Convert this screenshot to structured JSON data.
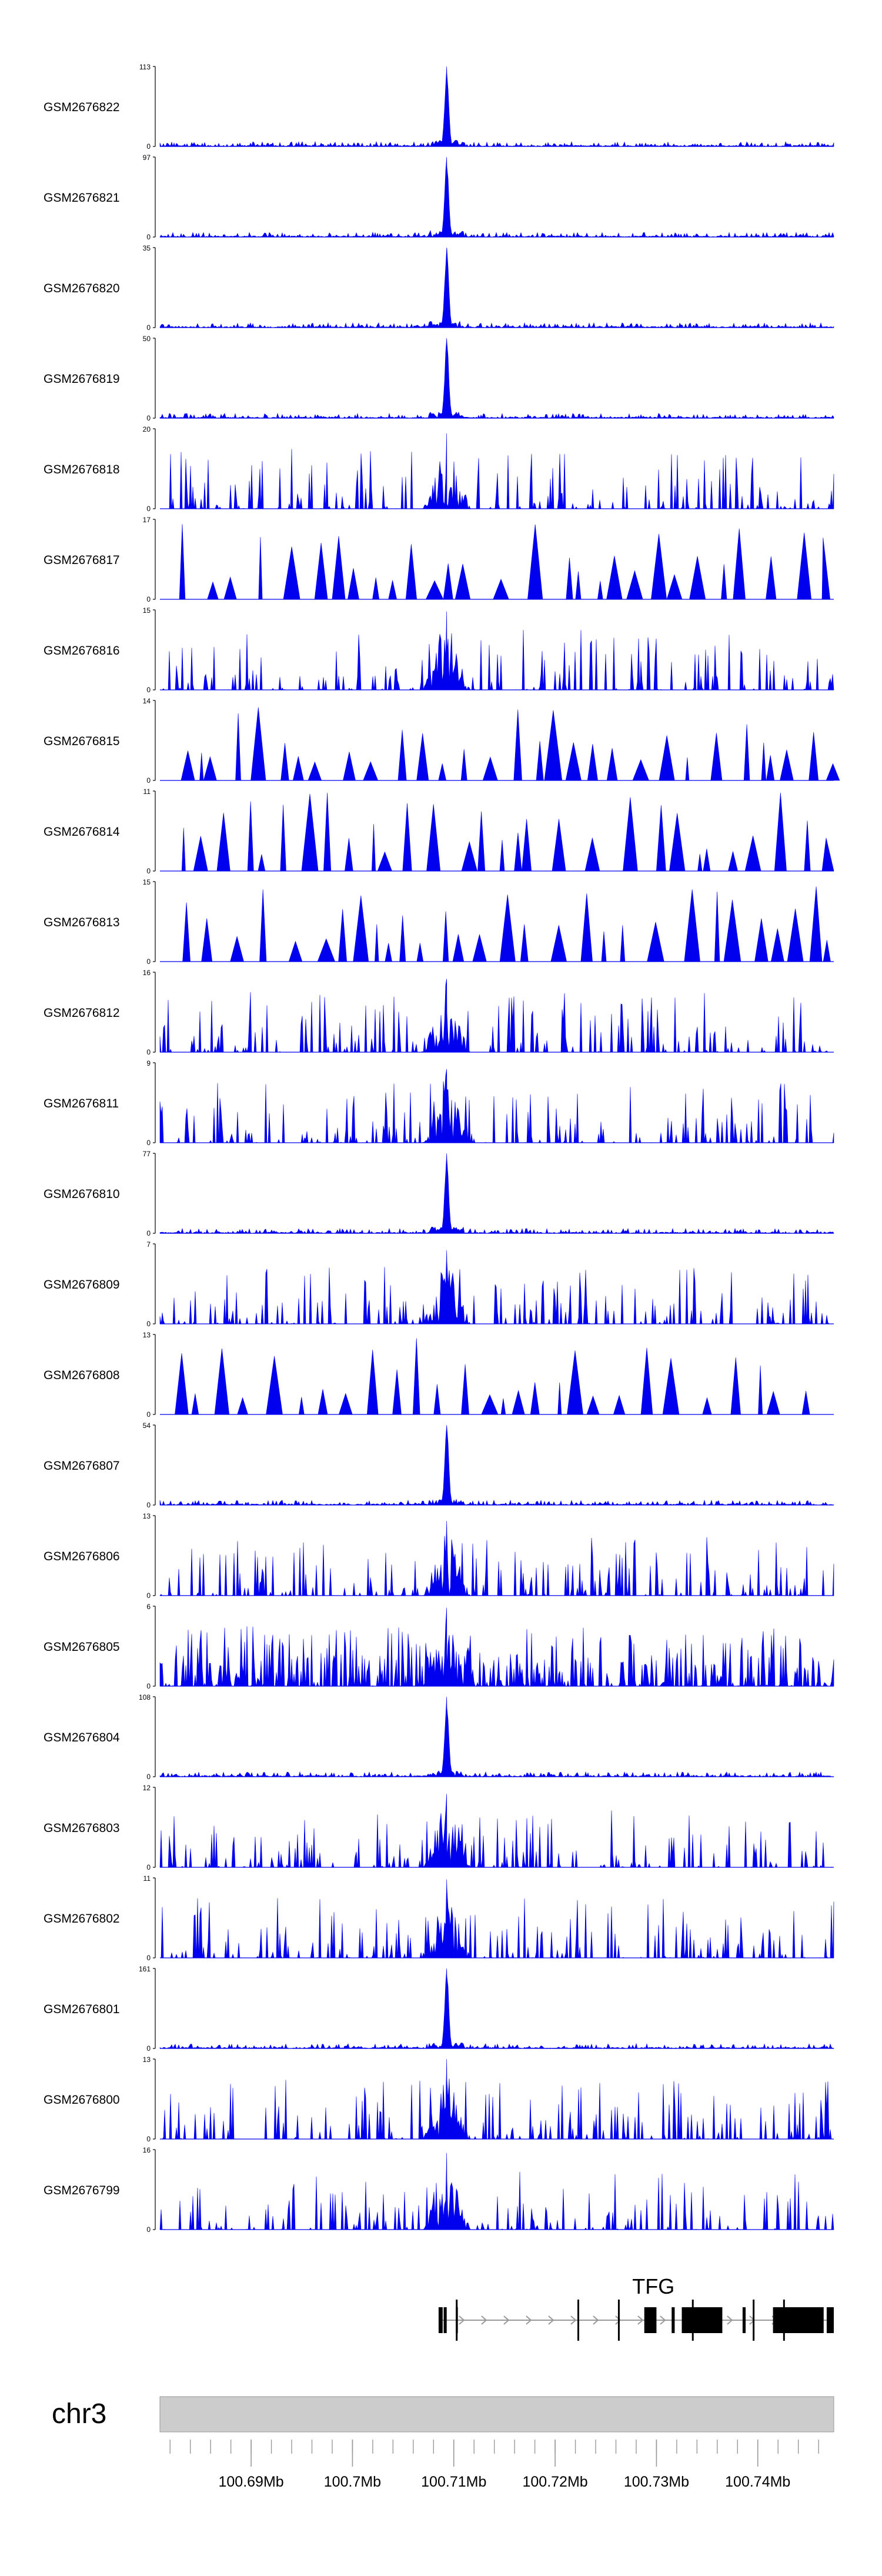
{
  "chart_data": {
    "type": "area",
    "title": "",
    "genome_axis": {
      "chromosome": "chr3",
      "range_mb": [
        100.681,
        100.7475
      ],
      "major_ticks_mb": [
        100.69,
        100.7,
        100.71,
        100.72,
        100.73,
        100.74
      ],
      "tick_labels": [
        "100.69Mb",
        "100.7Mb",
        "100.71Mb",
        "100.72Mb",
        "100.73Mb",
        "100.74Mb"
      ]
    },
    "peak_position_mb": 100.7093,
    "gene": {
      "name": "TFG",
      "start_mb": 100.7085,
      "end_mb": 100.7475,
      "exons_mb": [
        [
          100.7085,
          100.7089
        ],
        [
          100.709,
          100.7093
        ],
        [
          100.7102,
          100.7104
        ],
        [
          100.7288,
          100.73
        ],
        [
          100.7315,
          100.7318
        ],
        [
          100.7325,
          100.7365
        ],
        [
          100.7385,
          100.7388
        ],
        [
          100.7415,
          100.7465
        ],
        [
          100.7468,
          100.7475
        ]
      ]
    },
    "tracks": [
      {
        "name": "GSM2676822",
        "ymax": "113",
        "ymin": "0",
        "peak_value": 113,
        "profile": "peaked"
      },
      {
        "name": "GSM2676821",
        "ymax": "97",
        "ymin": "0",
        "peak_value": 97,
        "profile": "peaked"
      },
      {
        "name": "GSM2676820",
        "ymax": "35",
        "ymin": "0",
        "peak_value": 35,
        "profile": "peaked"
      },
      {
        "name": "GSM2676819",
        "ymax": "50",
        "ymin": "0",
        "peak_value": 50,
        "profile": "peaked"
      },
      {
        "name": "GSM2676818",
        "ymax": "20",
        "ymin": "0",
        "peak_value": 20,
        "profile": "noisy"
      },
      {
        "name": "GSM2676817",
        "ymax": "17",
        "ymin": "0",
        "peak_value": 17,
        "profile": "sparse"
      },
      {
        "name": "GSM2676816",
        "ymax": "15",
        "ymin": "0",
        "peak_value": 15,
        "profile": "noisy"
      },
      {
        "name": "GSM2676815",
        "ymax": "14",
        "ymin": "0",
        "peak_value": 14,
        "profile": "sparse"
      },
      {
        "name": "GSM2676814",
        "ymax": "11",
        "ymin": "0",
        "peak_value": 11,
        "profile": "sparse"
      },
      {
        "name": "GSM2676813",
        "ymax": "15",
        "ymin": "0",
        "peak_value": 15,
        "profile": "sparse"
      },
      {
        "name": "GSM2676812",
        "ymax": "16",
        "ymin": "0",
        "peak_value": 16,
        "profile": "noisy"
      },
      {
        "name": "GSM2676811",
        "ymax": "9",
        "ymin": "0",
        "peak_value": 9,
        "profile": "noisy"
      },
      {
        "name": "GSM2676810",
        "ymax": "77",
        "ymin": "0",
        "peak_value": 77,
        "profile": "peaked"
      },
      {
        "name": "GSM2676809",
        "ymax": "7",
        "ymin": "0",
        "peak_value": 7,
        "profile": "noisy"
      },
      {
        "name": "GSM2676808",
        "ymax": "13",
        "ymin": "0",
        "peak_value": 13,
        "profile": "sparse"
      },
      {
        "name": "GSM2676807",
        "ymax": "54",
        "ymin": "0",
        "peak_value": 54,
        "profile": "peaked"
      },
      {
        "name": "GSM2676806",
        "ymax": "13",
        "ymin": "0",
        "peak_value": 13,
        "profile": "noisy"
      },
      {
        "name": "GSM2676805",
        "ymax": "6",
        "ymin": "0",
        "peak_value": 6,
        "profile": "dense"
      },
      {
        "name": "GSM2676804",
        "ymax": "108",
        "ymin": "0",
        "peak_value": 108,
        "profile": "peaked"
      },
      {
        "name": "GSM2676803",
        "ymax": "12",
        "ymin": "0",
        "peak_value": 12,
        "profile": "noisy"
      },
      {
        "name": "GSM2676802",
        "ymax": "11",
        "ymin": "0",
        "peak_value": 11,
        "profile": "noisy"
      },
      {
        "name": "GSM2676801",
        "ymax": "161",
        "ymin": "0",
        "peak_value": 161,
        "profile": "peaked"
      },
      {
        "name": "GSM2676800",
        "ymax": "13",
        "ymin": "0",
        "peak_value": 13,
        "profile": "noisy"
      },
      {
        "name": "GSM2676799",
        "ymax": "16",
        "ymin": "0",
        "peak_value": 16,
        "profile": "noisy"
      }
    ]
  },
  "colors": {
    "signal": "#0000ee",
    "ideogram_fill": "#cccccc",
    "ideogram_stroke": "#999999",
    "gene_feature": "#000000",
    "intron_line": "#999999"
  }
}
